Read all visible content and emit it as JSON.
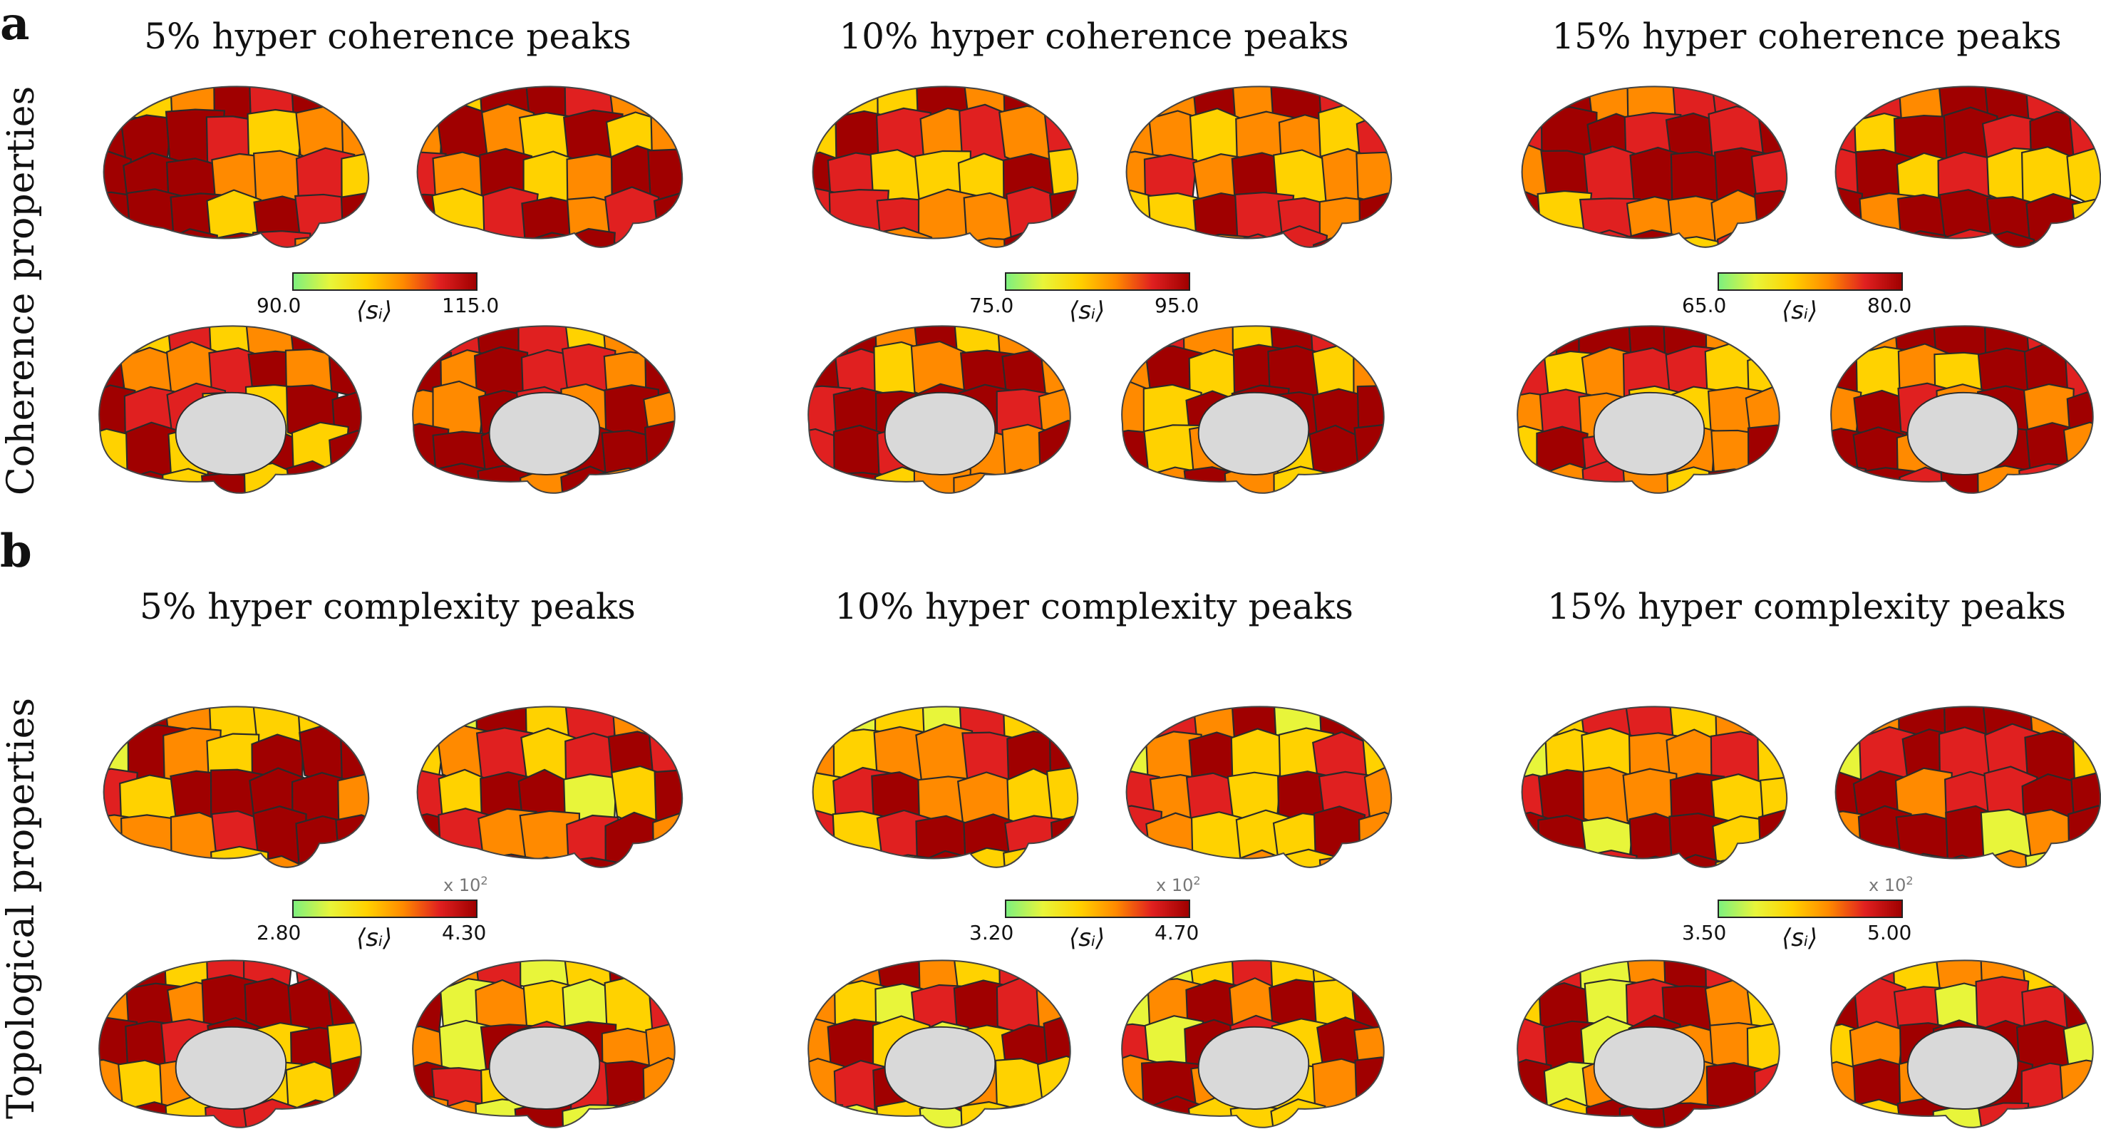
{
  "panels": {
    "a": {
      "letter": "a",
      "row_label": "Coherence properties",
      "columns": [
        {
          "title": "5% hyper coherence peaks",
          "cbar_min": "90.0",
          "cbar_max": "115.0",
          "cbar_label": "⟨sᵢ⟩"
        },
        {
          "title": "10% hyper coherence peaks",
          "cbar_min": "75.0",
          "cbar_max": "95.0",
          "cbar_label": "⟨sᵢ⟩"
        },
        {
          "title": "15% hyper coherence peaks",
          "cbar_min": "65.0",
          "cbar_max": "80.0",
          "cbar_label": "⟨sᵢ⟩"
        }
      ]
    },
    "b": {
      "letter": "b",
      "row_label": "Topological properties",
      "columns": [
        {
          "title": "5% hyper complexity peaks",
          "cbar_min": "2.80",
          "cbar_max": "4.30",
          "cbar_label": "⟨sᵢ⟩",
          "multiplier": "x 10",
          "multiplier_exp": "2"
        },
        {
          "title": "10% hyper complexity peaks",
          "cbar_min": "3.20",
          "cbar_max": "4.70",
          "cbar_label": "⟨sᵢ⟩",
          "multiplier": "x 10",
          "multiplier_exp": "2"
        },
        {
          "title": "15% hyper complexity peaks",
          "cbar_min": "3.50",
          "cbar_max": "5.00",
          "cbar_label": "⟨sᵢ⟩",
          "multiplier": "x 10",
          "multiplier_exp": "2"
        }
      ]
    }
  },
  "colors": {
    "colormap": [
      "#7ef07e",
      "#e8f53a",
      "#ffd200",
      "#ff8a00",
      "#e02020",
      "#a00000"
    ],
    "medial_wall": "#d9d9d9",
    "parcel_border": "#2a2a2a"
  }
}
